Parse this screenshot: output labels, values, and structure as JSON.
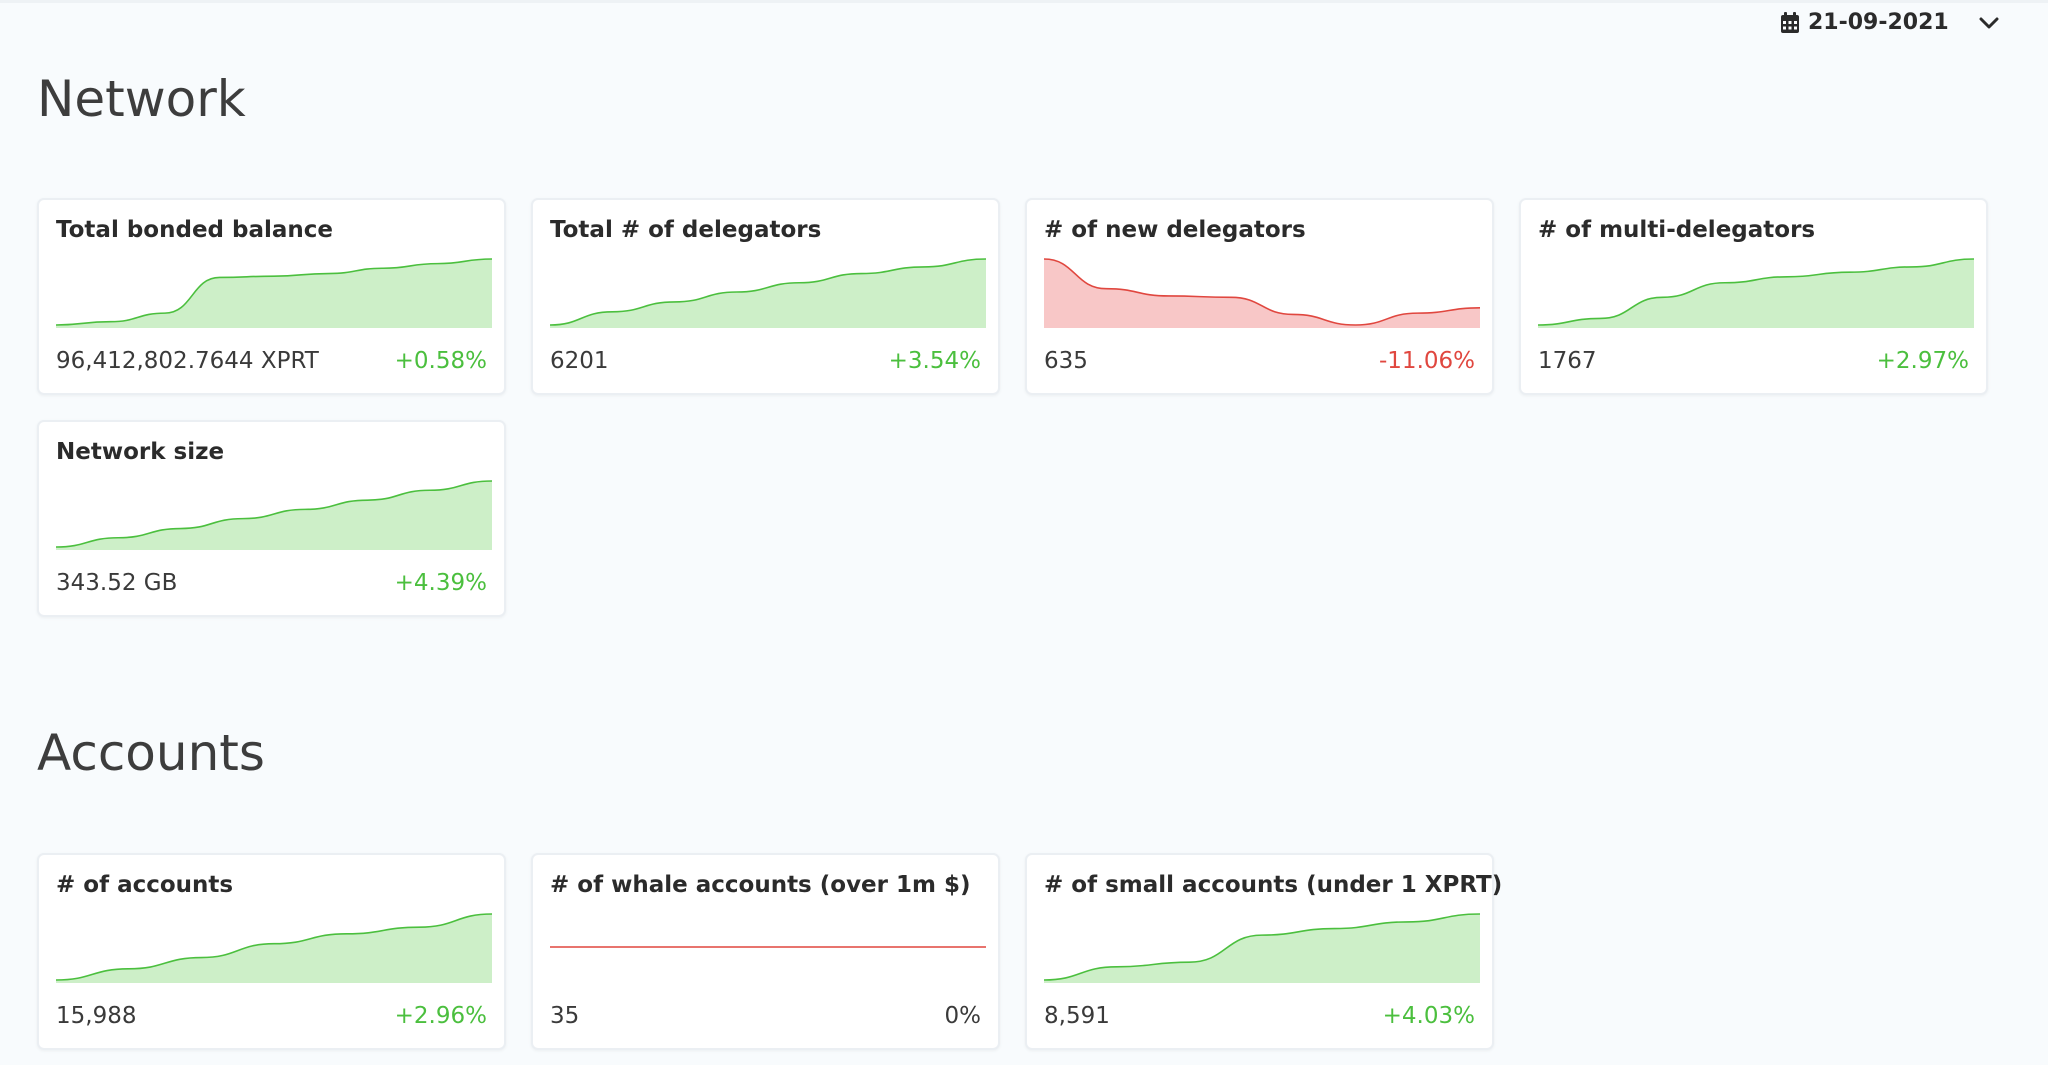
{
  "date_picker": {
    "date": "21-09-2021",
    "icon": "calendar-icon",
    "chevron": "chevron-down-icon"
  },
  "colors": {
    "positive": "#4bbf3e",
    "negative": "#e0473f",
    "positive_fill": "#cdefc8",
    "negative_fill": "#f8c7c7"
  },
  "sections": {
    "network": {
      "title": "Network",
      "cards": [
        {
          "title": "Total bonded balance",
          "value": "96,412,802.7644 XPRT",
          "change": "+0.58%",
          "trend": "positive",
          "spark": [
            0.0,
            0.05,
            0.18,
            0.72,
            0.74,
            0.78,
            0.86,
            0.93,
            1.0
          ]
        },
        {
          "title": "Total # of delegators",
          "value": "6201",
          "change": "+3.54%",
          "trend": "positive",
          "spark": [
            0.0,
            0.2,
            0.35,
            0.5,
            0.64,
            0.78,
            0.88,
            1.0
          ]
        },
        {
          "title": "# of new delegators",
          "value": "635",
          "change": "-11.06%",
          "trend": "negative",
          "spark": [
            1.0,
            0.55,
            0.44,
            0.42,
            0.16,
            0.0,
            0.18,
            0.26
          ]
        },
        {
          "title": "# of multi-delegators",
          "value": "1767",
          "change": "+2.97%",
          "trend": "positive",
          "spark": [
            0.0,
            0.1,
            0.42,
            0.64,
            0.73,
            0.8,
            0.88,
            1.0
          ]
        },
        {
          "title": "Network size",
          "value": "343.52 GB",
          "change": "+4.39%",
          "trend": "positive",
          "spark": [
            0.0,
            0.14,
            0.28,
            0.43,
            0.57,
            0.71,
            0.86,
            1.0
          ]
        }
      ]
    },
    "accounts": {
      "title": "Accounts",
      "cards": [
        {
          "title": "# of accounts",
          "value": "15,988",
          "change": "+2.96%",
          "trend": "positive",
          "spark": [
            0.0,
            0.17,
            0.34,
            0.55,
            0.7,
            0.8,
            1.0
          ]
        },
        {
          "title": "# of whale accounts (over 1m $)",
          "value": "35",
          "change": "0%",
          "trend": "flat",
          "spark": [
            0.5,
            0.5,
            0.5,
            0.5,
            0.5
          ]
        },
        {
          "title": "# of small accounts (under 1 XPRT)",
          "value": "8,591",
          "change": "+4.03%",
          "trend": "positive",
          "spark": [
            0.0,
            0.2,
            0.27,
            0.68,
            0.78,
            0.88,
            1.0
          ]
        }
      ]
    }
  }
}
